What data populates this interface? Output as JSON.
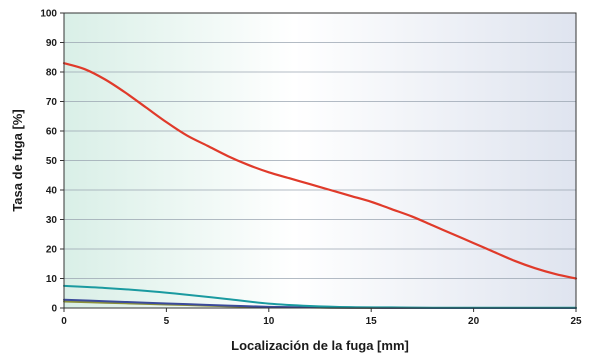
{
  "chart_data": {
    "type": "line",
    "title": "",
    "xlabel": "Localización de la fuga [mm]",
    "ylabel": "Tasa de fuga [%]",
    "xlim": [
      0,
      25
    ],
    "ylim": [
      0,
      100
    ],
    "xticks": [
      0,
      5,
      10,
      15,
      20,
      25
    ],
    "yticks": [
      0,
      10,
      20,
      30,
      40,
      50,
      60,
      70,
      80,
      90,
      100
    ],
    "grid": true,
    "legend": "none",
    "background_gradient": [
      "#d9efe7",
      "#ffffff",
      "#dfe4ef"
    ],
    "series": [
      {
        "color": "#e03a2a",
        "x": [
          0,
          1,
          2,
          3,
          4,
          5,
          6,
          7,
          8,
          9,
          10,
          11,
          12,
          13,
          14,
          15,
          16,
          17,
          18,
          19,
          20,
          21,
          22,
          23,
          24,
          25
        ],
        "y": [
          83,
          81,
          77.5,
          73,
          68,
          63,
          58.5,
          55,
          51.5,
          48.5,
          46,
          44,
          42,
          40,
          38,
          36,
          33.5,
          31,
          28,
          25,
          22,
          19,
          16,
          13.5,
          11.5,
          10
        ]
      },
      {
        "color": "#1a9aa0",
        "x": [
          0,
          2,
          4,
          6,
          8,
          10,
          12,
          14,
          16,
          18,
          20,
          22,
          25
        ],
        "y": [
          7.5,
          6.8,
          5.8,
          4.5,
          3,
          1.5,
          0.7,
          0.3,
          0.2,
          0.1,
          0.1,
          0.1,
          0.1
        ]
      },
      {
        "color": "#3b4a9a",
        "x": [
          0,
          2,
          4,
          6,
          8,
          10,
          12,
          14,
          16,
          18,
          20,
          22,
          25
        ],
        "y": [
          2.8,
          2.3,
          1.8,
          1.3,
          0.8,
          0.4,
          0.2,
          0.1,
          0.05,
          0,
          0,
          0,
          0
        ]
      },
      {
        "color": "#8a8f3a",
        "x": [
          0,
          2,
          4,
          6,
          8,
          10,
          12,
          14,
          16,
          18,
          20,
          22,
          25
        ],
        "y": [
          2.2,
          1.8,
          1.4,
          1,
          0.6,
          0.3,
          0.15,
          0.05,
          0,
          0,
          0,
          0,
          0
        ]
      }
    ]
  }
}
